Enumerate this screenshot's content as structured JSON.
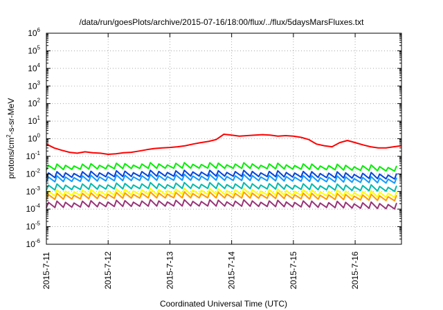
{
  "chart_data": {
    "type": "line",
    "title": "/data/run/goesPlots/archive/2015-07-16/18:00/flux/../flux/5daysMarsFluxes.txt",
    "xlabel": "Coordinated Universal Time (UTC)",
    "ylabel": {
      "prefix": "protons/cm",
      "superscript": "2",
      "suffix": "-s-sr-MeV"
    },
    "y_scale": "log",
    "ylim": [
      1e-06,
      1000000.0
    ],
    "y_ticks": [
      {
        "base": "10",
        "exp": "-6"
      },
      {
        "base": "10",
        "exp": "-5"
      },
      {
        "base": "10",
        "exp": "-4"
      },
      {
        "base": "10",
        "exp": "-3"
      },
      {
        "base": "10",
        "exp": "-2"
      },
      {
        "base": "10",
        "exp": "-1"
      },
      {
        "base": "10",
        "exp": "0"
      },
      {
        "base": "10",
        "exp": "1"
      },
      {
        "base": "10",
        "exp": "2"
      },
      {
        "base": "10",
        "exp": "3"
      },
      {
        "base": "10",
        "exp": "4"
      },
      {
        "base": "10",
        "exp": "5"
      },
      {
        "base": "10",
        "exp": "6"
      }
    ],
    "xlim": [
      "2015-07-11T00:00",
      "2015-07-16T18:00"
    ],
    "x_ticks": [
      "2015-7-11",
      "2015-7-12",
      "2015-7-13",
      "2015-7-14",
      "2015-7-15",
      "2015-7-16"
    ],
    "grid": true,
    "series": [
      {
        "color": "#ff0000",
        "x": [
          "2015-07-11T00:00",
          "2015-07-11T03:00",
          "2015-07-11T06:00",
          "2015-07-11T09:00",
          "2015-07-11T12:00",
          "2015-07-11T15:00",
          "2015-07-11T18:00",
          "2015-07-11T21:00",
          "2015-07-12T00:00",
          "2015-07-12T03:00",
          "2015-07-12T06:00",
          "2015-07-12T09:00",
          "2015-07-12T12:00",
          "2015-07-12T15:00",
          "2015-07-12T18:00",
          "2015-07-12T21:00",
          "2015-07-13T00:00",
          "2015-07-13T03:00",
          "2015-07-13T06:00",
          "2015-07-13T09:00",
          "2015-07-13T12:00",
          "2015-07-13T15:00",
          "2015-07-13T18:00",
          "2015-07-13T21:00",
          "2015-07-14T00:00",
          "2015-07-14T03:00",
          "2015-07-14T06:00",
          "2015-07-14T09:00",
          "2015-07-14T12:00",
          "2015-07-14T15:00",
          "2015-07-14T18:00",
          "2015-07-14T21:00",
          "2015-07-15T00:00",
          "2015-07-15T03:00",
          "2015-07-15T06:00",
          "2015-07-15T09:00",
          "2015-07-15T12:00",
          "2015-07-15T15:00",
          "2015-07-15T18:00",
          "2015-07-15T21:00",
          "2015-07-16T00:00",
          "2015-07-16T03:00",
          "2015-07-16T06:00",
          "2015-07-16T09:00",
          "2015-07-16T12:00",
          "2015-07-16T15:00",
          "2015-07-16T18:00"
        ],
        "y": [
          0.5,
          0.3,
          0.22,
          0.17,
          0.15,
          0.18,
          0.16,
          0.15,
          0.13,
          0.14,
          0.16,
          0.17,
          0.2,
          0.24,
          0.28,
          0.3,
          0.32,
          0.35,
          0.4,
          0.5,
          0.6,
          0.7,
          0.9,
          1.8,
          1.6,
          1.4,
          1.5,
          1.6,
          1.7,
          1.6,
          1.4,
          1.5,
          1.4,
          1.2,
          0.9,
          0.5,
          0.4,
          0.35,
          0.6,
          0.8,
          0.6,
          0.45,
          0.35,
          0.3,
          0.3,
          0.35,
          0.4
        ]
      },
      {
        "color": "#00ee00",
        "base": 0.017,
        "amplitude": 1.8
      },
      {
        "color": "#0044dd",
        "base": 0.006,
        "amplitude": 1.9
      },
      {
        "color": "#1199ff",
        "base": 0.0035,
        "amplitude": 1.9
      },
      {
        "color": "#00bbaa",
        "base": 0.0012,
        "amplitude": 1.9
      },
      {
        "color": "#ffff00",
        "base": 0.00055,
        "amplitude": 1.9
      },
      {
        "color": "#ff9900",
        "base": 0.00035,
        "amplitude": 1.9
      },
      {
        "color": "#993377",
        "base": 0.00012,
        "amplitude": 2.0
      }
    ]
  }
}
